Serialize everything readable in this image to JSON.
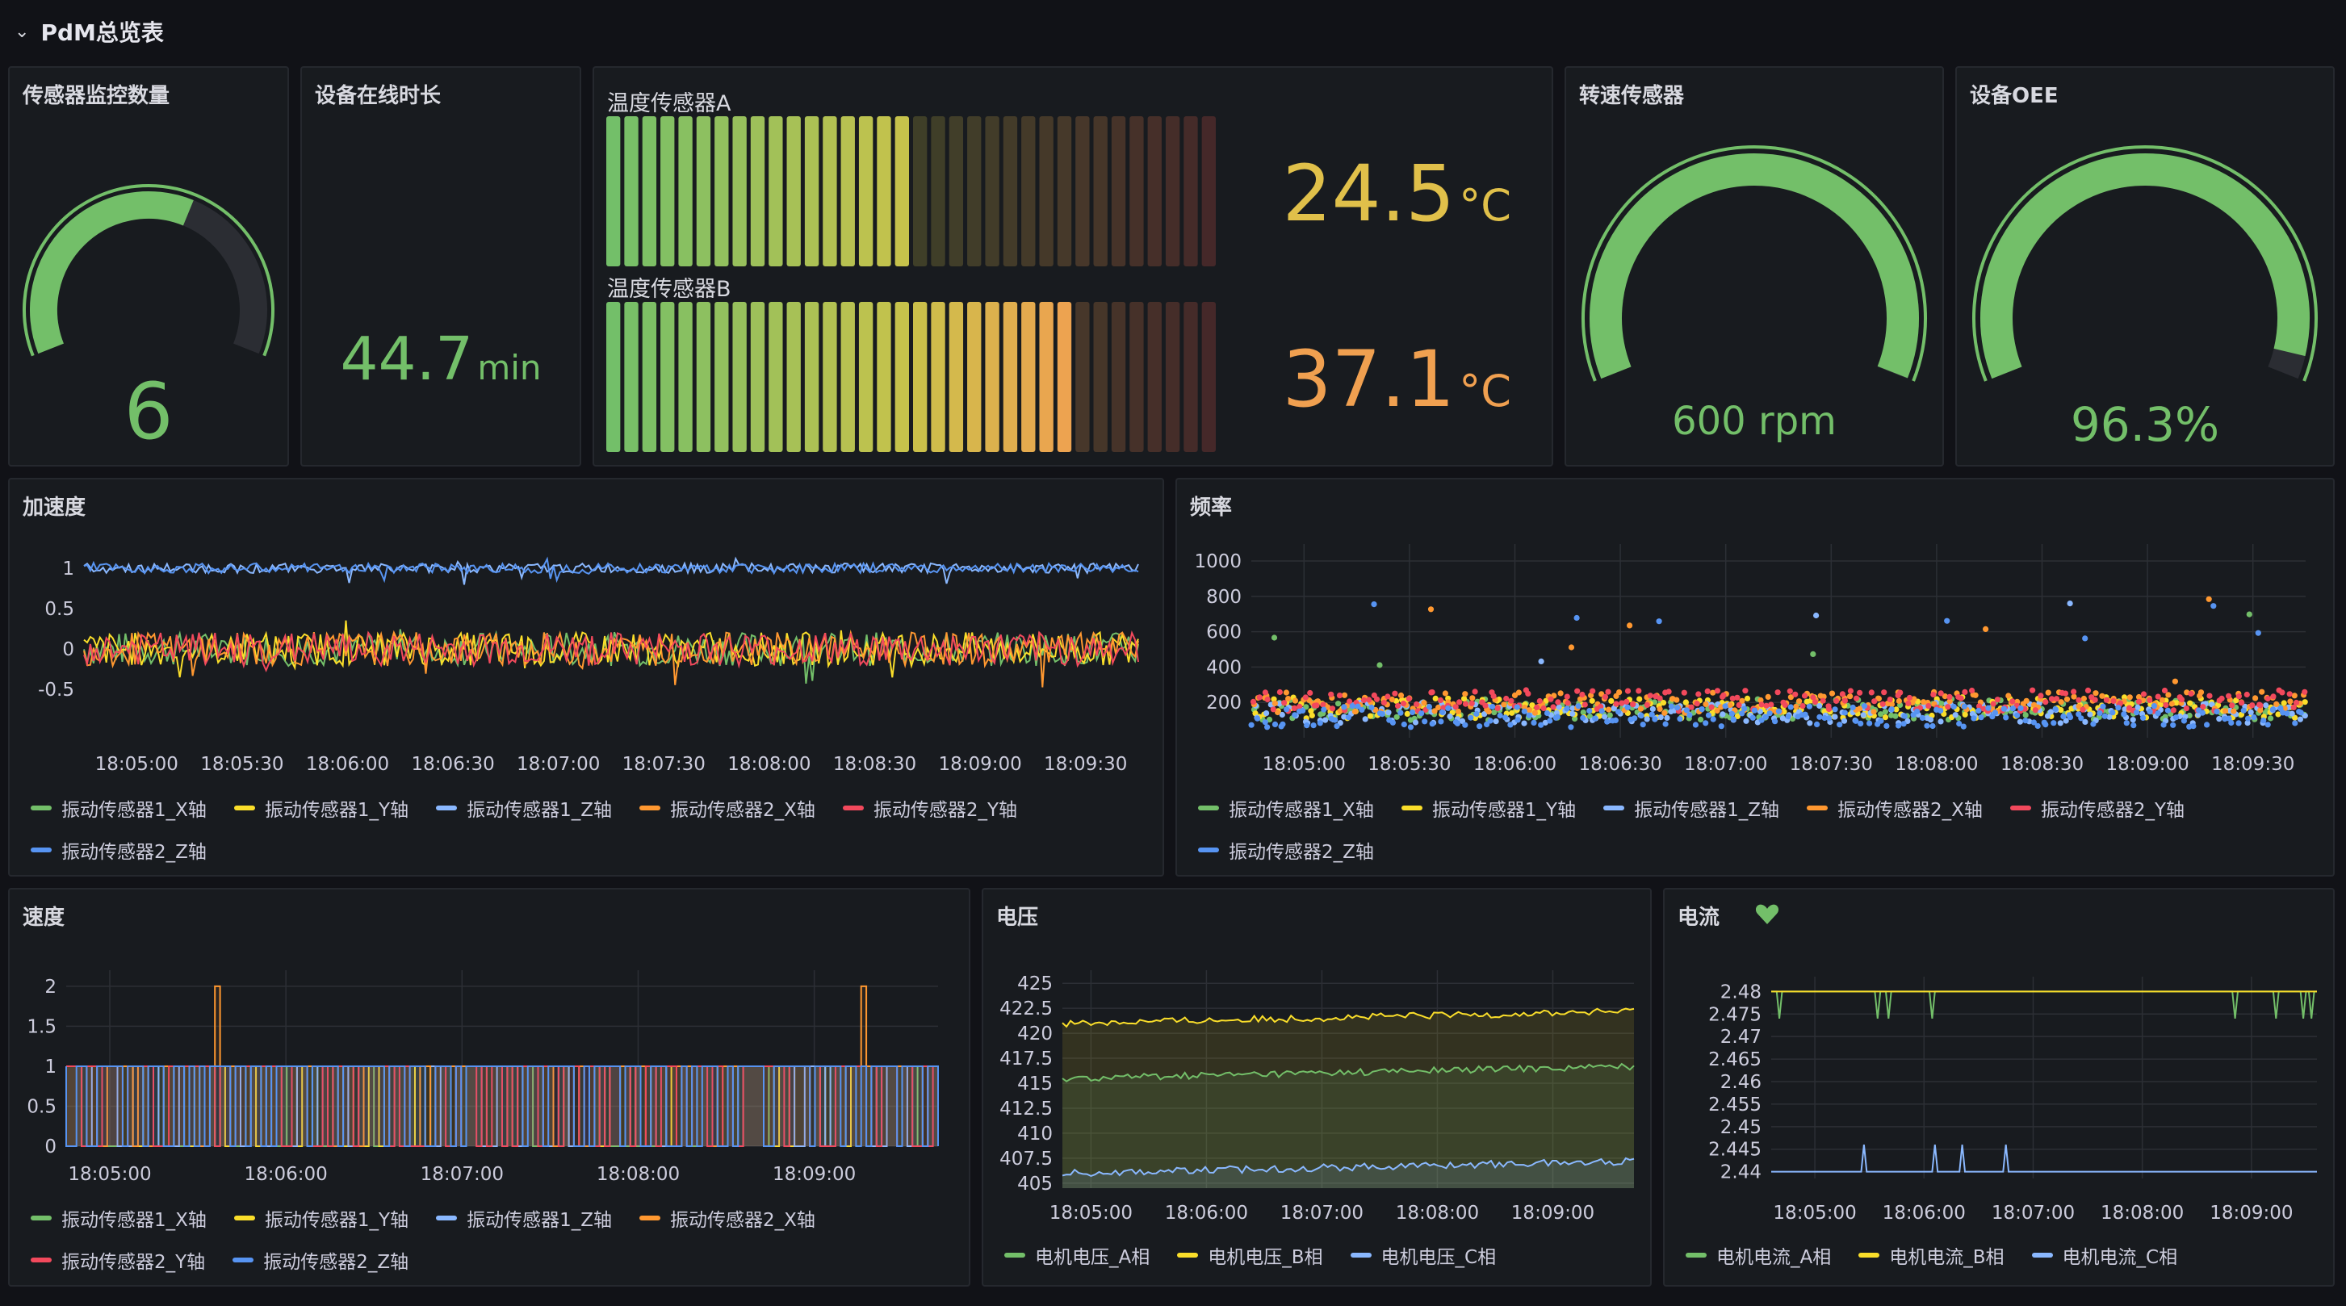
{
  "dashboard": {
    "title": "PdM总览表"
  },
  "colors": {
    "green": "#73bf69",
    "yellow": "#fade2a",
    "blue": "#8ab8ff",
    "orange": "#ff9830",
    "red": "#f2495c",
    "blue2": "#5794f2",
    "tempA": "#e0c04a",
    "tempB": "#f0a050"
  },
  "stat_sensor_count": {
    "title": "传感器监控数量",
    "value": "6",
    "fraction": 0.6
  },
  "stat_uptime": {
    "title": "设备在线时长",
    "value": "44.7",
    "unit": "min"
  },
  "bargauge": {
    "a": {
      "title": "温度传感器A",
      "value": "24.5",
      "unit": "°C",
      "fraction": 0.5
    },
    "b": {
      "title": "温度传感器B",
      "value": "37.1",
      "unit": "°C",
      "fraction": 0.76
    }
  },
  "gauge_rpm": {
    "title": "转速传感器",
    "value": "600 rpm",
    "fraction": 1.0
  },
  "gauge_oee": {
    "title": "设备OEE",
    "value": "96.3%",
    "fraction": 0.963
  },
  "panel_accel": {
    "title": "加速度"
  },
  "panel_freq": {
    "title": "频率"
  },
  "panel_speed": {
    "title": "速度"
  },
  "panel_voltage": {
    "title": "电压"
  },
  "panel_current": {
    "title": "电流"
  },
  "legend_vib": [
    "振动传感器1_X轴",
    "振动传感器1_Y轴",
    "振动传感器1_Z轴",
    "振动传感器2_X轴",
    "振动传感器2_Y轴",
    "振动传感器2_Z轴"
  ],
  "legend_voltage": [
    "电机电压_A相",
    "电机电压_B相",
    "电机电压_C相"
  ],
  "legend_current": [
    "电机电流_A相",
    "电机电流_B相",
    "电机电流_C相"
  ],
  "chart_data": [
    {
      "type": "line",
      "title": "加速度",
      "x": [
        "18:05:00",
        "18:05:30",
        "18:06:00",
        "18:06:30",
        "18:07:00",
        "18:07:30",
        "18:08:00",
        "18:08:30",
        "18:09:00",
        "18:09:30"
      ],
      "yticks": [
        "1",
        "0.5",
        "0",
        "-0.5"
      ],
      "ylim": [
        -0.6,
        1.2
      ],
      "series": [
        {
          "name": "振动传感器1_X轴",
          "level": 0
        },
        {
          "name": "振动传感器1_Y轴",
          "level": 0
        },
        {
          "name": "振动传感器1_Z轴",
          "level": 1
        },
        {
          "name": "振动传感器2_X轴",
          "level": 0
        },
        {
          "name": "振动传感器2_Y轴",
          "level": 0
        },
        {
          "name": "振动传感器2_Z轴",
          "level": 1
        }
      ]
    },
    {
      "type": "scatter",
      "title": "频率",
      "x": [
        "18:05:00",
        "18:05:30",
        "18:06:00",
        "18:06:30",
        "18:07:00",
        "18:07:30",
        "18:08:00",
        "18:08:30",
        "18:09:00",
        "18:09:30"
      ],
      "yticks": [
        "1000",
        "800",
        "600",
        "400",
        "200"
      ],
      "ylim": [
        0,
        1050
      ],
      "series": [
        {
          "name": "振动传感器1_X轴",
          "level": 160
        },
        {
          "name": "振动传感器1_Y轴",
          "level": 170
        },
        {
          "name": "振动传感器1_Z轴",
          "level": 140
        },
        {
          "name": "振动传感器2_X轴",
          "level": 200
        },
        {
          "name": "振动传感器2_Y轴",
          "level": 210
        },
        {
          "name": "振动传感器2_Z轴",
          "level": 120
        }
      ]
    },
    {
      "type": "line",
      "title": "速度",
      "x": [
        "18:05:00",
        "18:06:00",
        "18:07:00",
        "18:08:00",
        "18:09:00"
      ],
      "yticks": [
        "2",
        "1.5",
        "1",
        "0.5",
        "0"
      ],
      "ylim": [
        0,
        2.1
      ],
      "series": [
        {
          "name": "振动传感器1_X轴"
        },
        {
          "name": "振动传感器1_Y轴"
        },
        {
          "name": "振动传感器1_Z轴"
        },
        {
          "name": "振动传感器2_X轴"
        },
        {
          "name": "振动传感器2_Y轴"
        },
        {
          "name": "振动传感器2_Z轴"
        }
      ]
    },
    {
      "type": "area",
      "title": "电压",
      "x": [
        "18:05:00",
        "18:06:00",
        "18:07:00",
        "18:08:00",
        "18:09:00"
      ],
      "yticks": [
        "425",
        "422.5",
        "420",
        "417.5",
        "415",
        "412.5",
        "410",
        "407.5",
        "405"
      ],
      "ylim": [
        404.5,
        425.5
      ],
      "series": [
        {
          "name": "电机电压_A相",
          "level": 415.5
        },
        {
          "name": "电机电压_B相",
          "level": 421
        },
        {
          "name": "电机电压_C相",
          "level": 406
        }
      ]
    },
    {
      "type": "line",
      "title": "电流",
      "x": [
        "18:05:00",
        "18:06:00",
        "18:07:00",
        "18:08:00",
        "18:09:00"
      ],
      "yticks": [
        "2.48",
        "2.475",
        "2.47",
        "2.465",
        "2.46",
        "2.455",
        "2.45",
        "2.445",
        "2.44"
      ],
      "ylim": [
        2.4385,
        2.4815
      ],
      "series": [
        {
          "name": "电机电流_A相",
          "level": 2.48
        },
        {
          "name": "电机电流_B相",
          "level": 2.48
        },
        {
          "name": "电机电流_C相",
          "level": 2.44
        }
      ]
    }
  ]
}
